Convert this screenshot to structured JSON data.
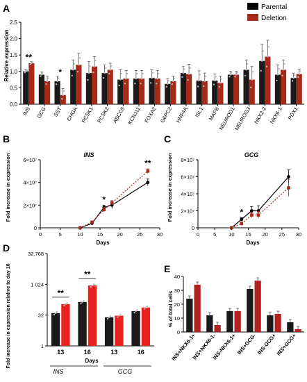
{
  "colors": {
    "parental": "#000000",
    "deletion": "#a52a1a",
    "deletion_d": "#e8201e",
    "deletion_e": "#b22222",
    "bar_dark": "#1a1a1a"
  },
  "legend": {
    "parental": "Parental",
    "deletion": "Deletion"
  },
  "chart_data": [
    {
      "panel": "A",
      "type": "bar",
      "ylabel": "Relative expression",
      "ylim": [
        0,
        2.5
      ],
      "yticks": [
        "0.0",
        "0.5",
        "1.0",
        "1.5",
        "2.0",
        "2.5"
      ],
      "categories": [
        "INS",
        "GCG",
        "SST",
        "CHGA",
        "PCSK1",
        "PCSK2",
        "ABCC8",
        "KCNJ11",
        "FOXA2",
        "G6PC2",
        "HNF4A",
        "ISL1",
        "MAFB",
        "NEUROD1",
        "NEUROG3",
        "NKX2-2",
        "NKX6-1",
        "PDX1"
      ],
      "series": [
        {
          "name": "Parental",
          "values": [
            1.0,
            0.9,
            0.7,
            1.05,
            0.95,
            0.95,
            0.75,
            0.78,
            0.8,
            0.62,
            0.95,
            0.72,
            0.72,
            0.9,
            1.05,
            1.32,
            0.9,
            0.8
          ]
        },
        {
          "name": "Deletion",
          "values": [
            1.25,
            0.7,
            0.28,
            1.2,
            1.15,
            1.05,
            0.78,
            0.78,
            0.78,
            0.7,
            0.92,
            0.7,
            0.65,
            0.9,
            0.75,
            1.45,
            1.05,
            0.92
          ]
        }
      ],
      "errors": [
        [
          0.05,
          0.08,
          0.15,
          0.3,
          0.35,
          0.25,
          0.3,
          0.25,
          0.25,
          0.15,
          0.2,
          0.3,
          0.2,
          0.1,
          0.3,
          0.5,
          0.3,
          0.15
        ],
        [
          0.05,
          0.15,
          0.2,
          0.35,
          0.3,
          0.2,
          0.25,
          0.25,
          0.25,
          0.15,
          0.3,
          0.25,
          0.2,
          0.1,
          0.4,
          0.5,
          0.3,
          0.15
        ]
      ],
      "annotations": [
        {
          "label": "**",
          "category": "INS"
        },
        {
          "label": "*",
          "category": "SST"
        }
      ]
    },
    {
      "panel": "B",
      "type": "line",
      "title": "INS",
      "xlabel": "Days",
      "ylabel": "Fold increase in expression",
      "xlim": [
        0,
        30
      ],
      "xticks": [
        "0",
        "5",
        "10",
        "15",
        "20",
        "25",
        "30"
      ],
      "ylim": [
        0,
        60000000
      ],
      "yticks": [
        "0",
        "2×10⁷",
        "4×10⁷",
        "6×10⁷"
      ],
      "x": [
        10,
        13,
        16,
        18,
        27
      ],
      "series": [
        {
          "name": "Parental",
          "values": [
            0,
            4000000,
            18000000,
            20000000,
            40000000
          ],
          "errors": [
            0,
            1000000,
            2000000,
            3000000,
            3000000
          ]
        },
        {
          "name": "Deletion",
          "values": [
            0,
            5000000,
            16000000,
            22000000,
            50000000
          ],
          "errors": [
            0,
            1000000,
            2000000,
            2000000,
            2000000
          ]
        }
      ],
      "annotations": [
        {
          "label": "*",
          "x": 16
        },
        {
          "label": "**",
          "x": 27
        }
      ]
    },
    {
      "panel": "C",
      "type": "line",
      "title": "GCG",
      "xlabel": "Days",
      "ylabel": "Fold increase in expression",
      "xlim": [
        0,
        30
      ],
      "xticks": [
        "0",
        "5",
        "10",
        "15",
        "20",
        "25",
        "30"
      ],
      "ylim": [
        0,
        80000000
      ],
      "yticks": [
        "0",
        "2×10⁷",
        "4×10⁷",
        "6×10⁷",
        "8×10⁷"
      ],
      "x": [
        10,
        13,
        16,
        18,
        27
      ],
      "series": [
        {
          "name": "Parental",
          "values": [
            0,
            10000000,
            20000000,
            20000000,
            60000000
          ],
          "errors": [
            0,
            2000000,
            5000000,
            6000000,
            8000000
          ]
        },
        {
          "name": "Deletion",
          "values": [
            0,
            5000000,
            15000000,
            15000000,
            47000000
          ],
          "errors": [
            0,
            2000000,
            3000000,
            4000000,
            10000000
          ]
        }
      ],
      "annotations": [
        {
          "label": "*",
          "x": 13
        }
      ]
    },
    {
      "panel": "D",
      "type": "bar",
      "scale": "log2",
      "xlabel": "Days",
      "ylabel": "Fold increase in expression relative to day 10",
      "ylim": [
        1,
        32768
      ],
      "yticks": [
        "1",
        "32",
        "1 024",
        "32,768"
      ],
      "categories": [
        "13",
        "16",
        "13",
        "16"
      ],
      "groups": [
        "INS",
        "GCG"
      ],
      "series": [
        {
          "name": "Parental",
          "values": [
            40,
            140,
            25,
            50
          ]
        },
        {
          "name": "Deletion",
          "values": [
            110,
            900,
            30,
            75
          ]
        }
      ],
      "annotations": [
        {
          "label": "**",
          "index": 0
        },
        {
          "label": "**",
          "index": 1
        }
      ]
    },
    {
      "panel": "E",
      "type": "bar",
      "ylabel": "% of total cells",
      "ylim": [
        0,
        40
      ],
      "yticks": [
        "0",
        "10",
        "20",
        "30",
        "40"
      ],
      "categories": [
        "INS+NKX6-1+",
        "INS+NKX6-1-",
        "INS-NKX6-1+",
        "INS+GCG-",
        "INS-GCG+",
        "INS+GCG+"
      ],
      "series": [
        {
          "name": "Parental",
          "values": [
            24,
            12,
            15,
            31,
            12,
            7
          ]
        },
        {
          "name": "Deletion",
          "values": [
            34,
            5,
            15,
            37,
            13,
            2
          ]
        }
      ]
    }
  ]
}
